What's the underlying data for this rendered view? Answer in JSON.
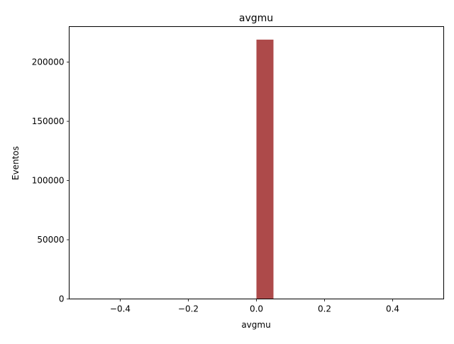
{
  "chart_data": {
    "type": "bar",
    "title": "avgmu",
    "xlabel": "avgmu",
    "ylabel": "Eventos",
    "xlim": [
      -0.55,
      0.55
    ],
    "ylim": [
      0,
      230000
    ],
    "xticks": [
      -0.4,
      -0.2,
      0.0,
      0.2,
      0.4
    ],
    "xtick_labels": [
      "−0.4",
      "−0.2",
      "0.0",
      "0.2",
      "0.4"
    ],
    "yticks": [
      0,
      50000,
      100000,
      150000,
      200000
    ],
    "ytick_labels": [
      "0",
      "50000",
      "100000",
      "150000",
      "200000"
    ],
    "bars": [
      {
        "x0": 0.0,
        "x1": 0.05,
        "value": 219000
      }
    ],
    "bar_color": "#ad4a4a",
    "grid": false,
    "legend": "none"
  }
}
